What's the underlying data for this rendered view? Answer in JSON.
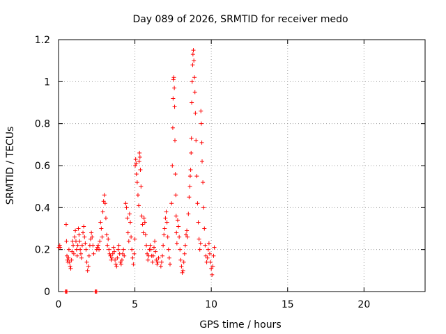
{
  "chart_data": {
    "type": "scatter",
    "title": "Day 089 of 2026, SRMTID for receiver medo",
    "xlabel": "GPS time / hours",
    "ylabel": "SRMTID / TECUs",
    "xlim": [
      0,
      24
    ],
    "ylim": [
      0,
      1.2
    ],
    "xticks": [
      0,
      5,
      10,
      15,
      20
    ],
    "yticks": [
      0,
      0.2,
      0.4,
      0.6,
      0.8,
      1,
      1.2
    ],
    "ytick_labels": [
      "0",
      "0.2",
      "0.4",
      "0.6",
      "0.8",
      "1",
      "1.2"
    ],
    "grid": true,
    "marker": "+",
    "color": "#ff0000",
    "series": [
      {
        "points": [
          [
            0.02,
            0.21
          ],
          [
            0.08,
            0.22
          ],
          [
            0.1,
            0.21
          ],
          [
            0.5,
            0.32
          ],
          [
            0.52,
            0.24
          ],
          [
            0.55,
            0.17
          ],
          [
            0.58,
            0.15
          ],
          [
            0.62,
            0.14
          ],
          [
            0.65,
            0.16
          ],
          [
            0.68,
            0.2
          ],
          [
            0.72,
            0.14
          ],
          [
            0.76,
            0.12
          ],
          [
            0.8,
            0.11
          ],
          [
            0.85,
            0.15
          ],
          [
            0.88,
            0.19
          ],
          [
            0.92,
            0.24
          ],
          [
            0.96,
            0.22
          ],
          [
            1.0,
            0.18
          ],
          [
            1.05,
            0.26
          ],
          [
            1.1,
            0.29
          ],
          [
            1.14,
            0.24
          ],
          [
            1.18,
            0.2
          ],
          [
            1.22,
            0.17
          ],
          [
            1.26,
            0.22
          ],
          [
            1.3,
            0.3
          ],
          [
            1.34,
            0.27
          ],
          [
            1.38,
            0.24
          ],
          [
            1.42,
            0.2
          ],
          [
            1.46,
            0.18
          ],
          [
            1.5,
            0.16
          ],
          [
            1.55,
            0.22
          ],
          [
            1.6,
            0.28
          ],
          [
            1.65,
            0.31
          ],
          [
            1.7,
            0.26
          ],
          [
            1.75,
            0.23
          ],
          [
            1.8,
            0.2
          ],
          [
            1.85,
            0.14
          ],
          [
            1.9,
            0.1
          ],
          [
            1.95,
            0.12
          ],
          [
            2.0,
            0.17
          ],
          [
            2.05,
            0.22
          ],
          [
            2.1,
            0.25
          ],
          [
            2.15,
            0.28
          ],
          [
            2.2,
            0.26
          ],
          [
            2.25,
            0.22
          ],
          [
            2.3,
            0.18
          ],
          [
            2.5,
            0.2
          ],
          [
            2.55,
            0.21
          ],
          [
            2.6,
            0.22
          ],
          [
            2.65,
            0.2
          ],
          [
            2.7,
            0.24
          ],
          [
            2.75,
            0.33
          ],
          [
            2.8,
            0.3
          ],
          [
            2.85,
            0.26
          ],
          [
            2.9,
            0.38
          ],
          [
            2.95,
            0.43
          ],
          [
            3.0,
            0.46
          ],
          [
            3.05,
            0.42
          ],
          [
            3.1,
            0.35
          ],
          [
            3.15,
            0.27
          ],
          [
            3.2,
            0.22
          ],
          [
            3.25,
            0.25
          ],
          [
            3.3,
            0.2
          ],
          [
            3.35,
            0.18
          ],
          [
            3.4,
            0.17
          ],
          [
            3.45,
            0.15
          ],
          [
            3.5,
            0.16
          ],
          [
            3.55,
            0.18
          ],
          [
            3.6,
            0.21
          ],
          [
            3.65,
            0.19
          ],
          [
            3.7,
            0.15
          ],
          [
            3.75,
            0.13
          ],
          [
            3.8,
            0.12
          ],
          [
            3.85,
            0.16
          ],
          [
            3.9,
            0.2
          ],
          [
            3.95,
            0.22
          ],
          [
            4.0,
            0.18
          ],
          [
            4.05,
            0.14
          ],
          [
            4.1,
            0.13
          ],
          [
            4.15,
            0.15
          ],
          [
            4.2,
            0.18
          ],
          [
            4.25,
            0.2
          ],
          [
            4.3,
            0.17
          ],
          [
            4.4,
            0.42
          ],
          [
            4.45,
            0.4
          ],
          [
            4.5,
            0.35
          ],
          [
            4.55,
            0.28
          ],
          [
            4.6,
            0.24
          ],
          [
            4.65,
            0.37
          ],
          [
            4.7,
            0.33
          ],
          [
            4.75,
            0.26
          ],
          [
            4.8,
            0.2
          ],
          [
            4.85,
            0.16
          ],
          [
            4.9,
            0.13
          ],
          [
            4.95,
            0.18
          ],
          [
            5.0,
            0.25
          ],
          [
            5.02,
            0.6
          ],
          [
            5.05,
            0.63
          ],
          [
            5.08,
            0.61
          ],
          [
            5.1,
            0.56
          ],
          [
            5.15,
            0.52
          ],
          [
            5.2,
            0.46
          ],
          [
            5.25,
            0.41
          ],
          [
            5.28,
            0.62
          ],
          [
            5.3,
            0.66
          ],
          [
            5.33,
            0.64
          ],
          [
            5.36,
            0.58
          ],
          [
            5.4,
            0.5
          ],
          [
            5.45,
            0.36
          ],
          [
            5.5,
            0.32
          ],
          [
            5.55,
            0.28
          ],
          [
            5.6,
            0.35
          ],
          [
            5.65,
            0.33
          ],
          [
            5.7,
            0.27
          ],
          [
            5.75,
            0.22
          ],
          [
            5.8,
            0.18
          ],
          [
            5.85,
            0.15
          ],
          [
            5.9,
            0.17
          ],
          [
            5.95,
            0.2
          ],
          [
            6.0,
            0.22
          ],
          [
            6.05,
            0.2
          ],
          [
            6.1,
            0.17
          ],
          [
            6.15,
            0.14
          ],
          [
            6.2,
            0.17
          ],
          [
            6.25,
            0.21
          ],
          [
            6.3,
            0.24
          ],
          [
            6.35,
            0.19
          ],
          [
            6.4,
            0.15
          ],
          [
            6.45,
            0.13
          ],
          [
            6.5,
            0.14
          ],
          [
            6.55,
            0.16
          ],
          [
            6.7,
            0.12
          ],
          [
            6.75,
            0.14
          ],
          [
            6.8,
            0.17
          ],
          [
            6.85,
            0.22
          ],
          [
            6.9,
            0.27
          ],
          [
            6.95,
            0.3
          ],
          [
            7.0,
            0.35
          ],
          [
            7.05,
            0.38
          ],
          [
            7.1,
            0.33
          ],
          [
            7.15,
            0.26
          ],
          [
            7.2,
            0.2
          ],
          [
            7.25,
            0.16
          ],
          [
            7.3,
            0.13
          ],
          [
            7.4,
            0.42
          ],
          [
            7.45,
            0.6
          ],
          [
            7.48,
            0.78
          ],
          [
            7.5,
            0.92
          ],
          [
            7.52,
            1.01
          ],
          [
            7.55,
            1.02
          ],
          [
            7.58,
            0.97
          ],
          [
            7.6,
            0.88
          ],
          [
            7.62,
            0.72
          ],
          [
            7.65,
            0.56
          ],
          [
            7.68,
            0.46
          ],
          [
            7.7,
            0.36
          ],
          [
            7.72,
            0.28
          ],
          [
            7.75,
            0.23
          ],
          [
            7.8,
            0.34
          ],
          [
            7.85,
            0.31
          ],
          [
            7.9,
            0.26
          ],
          [
            7.95,
            0.2
          ],
          [
            8.0,
            0.15
          ],
          [
            8.05,
            0.12
          ],
          [
            8.1,
            0.09
          ],
          [
            8.15,
            0.1
          ],
          [
            8.2,
            0.14
          ],
          [
            8.25,
            0.18
          ],
          [
            8.3,
            0.22
          ],
          [
            8.35,
            0.27
          ],
          [
            8.4,
            0.29
          ],
          [
            8.45,
            0.26
          ],
          [
            8.5,
            0.37
          ],
          [
            8.55,
            0.45
          ],
          [
            8.6,
            0.5
          ],
          [
            8.62,
            0.55
          ],
          [
            8.65,
            0.58
          ],
          [
            8.68,
            0.66
          ],
          [
            8.7,
            0.73
          ],
          [
            8.72,
            0.9
          ],
          [
            8.75,
            1.0
          ],
          [
            8.78,
            1.08
          ],
          [
            8.8,
            1.13
          ],
          [
            8.83,
            1.15
          ],
          [
            8.86,
            1.1
          ],
          [
            8.9,
            1.02
          ],
          [
            8.93,
            0.95
          ],
          [
            8.96,
            0.85
          ],
          [
            9.0,
            0.72
          ],
          [
            9.05,
            0.55
          ],
          [
            9.1,
            0.42
          ],
          [
            9.15,
            0.33
          ],
          [
            9.2,
            0.25
          ],
          [
            9.25,
            0.2
          ],
          [
            9.3,
            0.23
          ],
          [
            9.32,
            0.86
          ],
          [
            9.35,
            0.8
          ],
          [
            9.38,
            0.71
          ],
          [
            9.4,
            0.62
          ],
          [
            9.45,
            0.52
          ],
          [
            9.5,
            0.4
          ],
          [
            9.55,
            0.3
          ],
          [
            9.6,
            0.22
          ],
          [
            9.65,
            0.17
          ],
          [
            9.7,
            0.14
          ],
          [
            9.75,
            0.16
          ],
          [
            9.8,
            0.2
          ],
          [
            9.85,
            0.23
          ],
          [
            9.9,
            0.18
          ],
          [
            9.95,
            0.14
          ],
          [
            10.0,
            0.11
          ],
          [
            10.05,
            0.08
          ],
          [
            10.1,
            0.12
          ],
          [
            10.15,
            0.17
          ],
          [
            10.2,
            0.21
          ]
        ]
      },
      {
        "points": [
          [
            0.45,
            0
          ],
          [
            0.5,
            0
          ],
          [
            0.55,
            0
          ],
          [
            2.4,
            0
          ],
          [
            2.45,
            0
          ],
          [
            2.5,
            0
          ]
        ]
      }
    ]
  }
}
